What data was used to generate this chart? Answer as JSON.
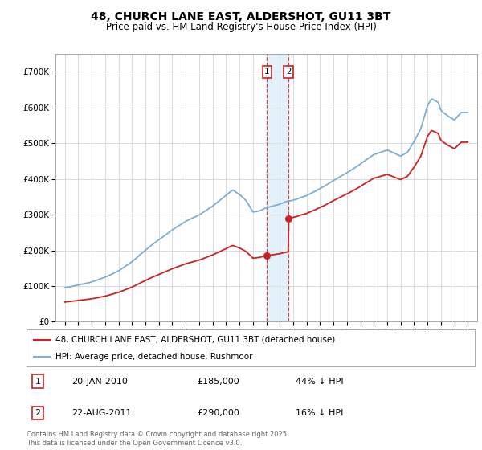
{
  "title": "48, CHURCH LANE EAST, ALDERSHOT, GU11 3BT",
  "subtitle": "Price paid vs. HM Land Registry's House Price Index (HPI)",
  "ylim": [
    0,
    750000
  ],
  "yticks": [
    0,
    100000,
    200000,
    300000,
    400000,
    500000,
    600000,
    700000
  ],
  "ytick_labels": [
    "£0",
    "£100K",
    "£200K",
    "£300K",
    "£400K",
    "£500K",
    "£600K",
    "£700K"
  ],
  "hpi_color": "#7bafd4",
  "price_color": "#cc2222",
  "purchase1_date": 2010.05,
  "purchase1_price": 185000,
  "purchase2_date": 2011.65,
  "purchase2_price": 290000,
  "legend_line1": "48, CHURCH LANE EAST, ALDERSHOT, GU11 3BT (detached house)",
  "legend_line2": "HPI: Average price, detached house, Rushmoor",
  "purchase1_year_label": "20-JAN-2010",
  "purchase1_price_label": "£185,000",
  "purchase1_hpi_pct": "44% ↓ HPI",
  "purchase2_year_label": "22-AUG-2011",
  "purchase2_price_label": "£290,000",
  "purchase2_hpi_pct": "16% ↓ HPI",
  "footer": "Contains HM Land Registry data © Crown copyright and database right 2025.\nThis data is licensed under the Open Government Licence v3.0.",
  "background_color": "#ffffff",
  "grid_color": "#cccccc",
  "xlim_left": 1994.3,
  "xlim_right": 2025.7
}
